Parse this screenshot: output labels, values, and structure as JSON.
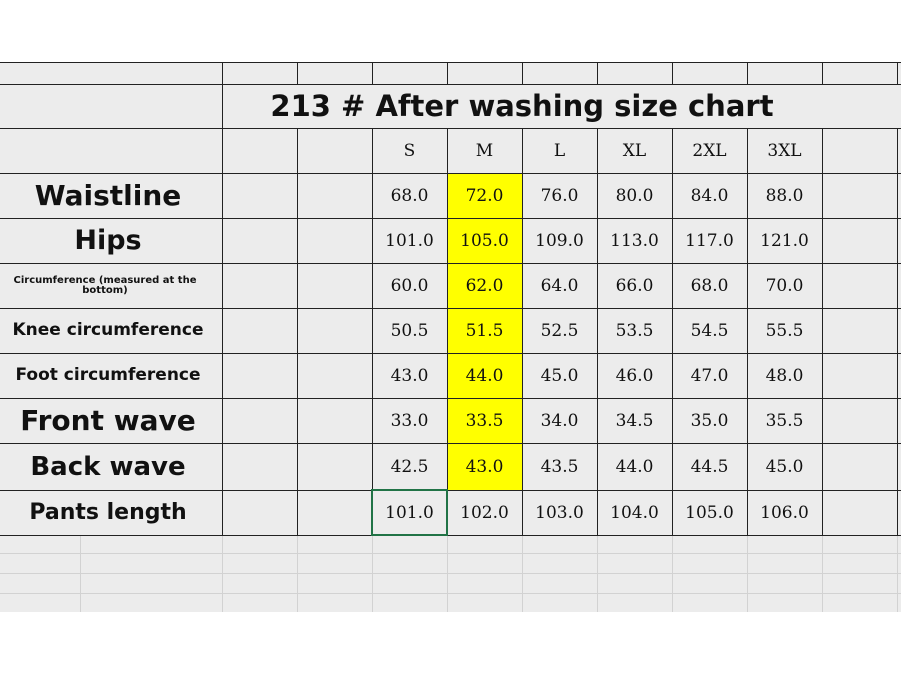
{
  "table": {
    "title": "213 # After washing size chart",
    "columns": [
      "S",
      "M",
      "L",
      "XL",
      "2XL",
      "3XL"
    ],
    "rows": [
      {
        "label": "Waistline",
        "values": [
          "68.0",
          "72.0",
          "76.0",
          "80.0",
          "84.0",
          "88.0"
        ]
      },
      {
        "label": "Hips",
        "values": [
          "101.0",
          "105.0",
          "109.0",
          "113.0",
          "117.0",
          "121.0"
        ]
      },
      {
        "label": "Circumference (measured at the bottom)",
        "values": [
          "60.0",
          "62.0",
          "64.0",
          "66.0",
          "68.0",
          "70.0"
        ]
      },
      {
        "label": "Knee circumference",
        "values": [
          "50.5",
          "51.5",
          "52.5",
          "53.5",
          "54.5",
          "55.5"
        ]
      },
      {
        "label": "Foot circumference",
        "values": [
          "43.0",
          "44.0",
          "45.0",
          "46.0",
          "47.0",
          "48.0"
        ]
      },
      {
        "label": "Front wave",
        "values": [
          "33.0",
          "33.5",
          "34.0",
          "34.5",
          "35.0",
          "35.5"
        ]
      },
      {
        "label": "Back wave",
        "values": [
          "42.5",
          "43.0",
          "43.5",
          "44.0",
          "44.5",
          "45.0"
        ]
      },
      {
        "label": "Pants length",
        "values": [
          "101.0",
          "102.0",
          "103.0",
          "104.0",
          "105.0",
          "106.0"
        ]
      }
    ]
  }
}
